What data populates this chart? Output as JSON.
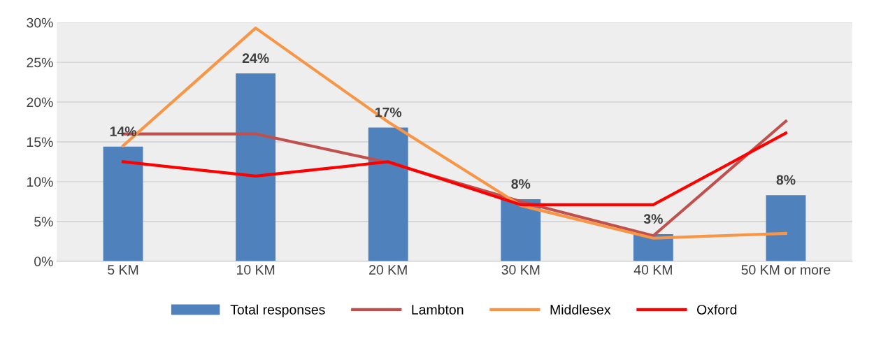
{
  "chart_data": {
    "type": "bar",
    "categories": [
      "5 KM",
      "10 KM",
      "20 KM",
      "30 KM",
      "40 KM",
      "50 KM or more"
    ],
    "series": [
      {
        "name": "Total responses",
        "color": "#4f81bd",
        "values": [
          14.4,
          23.6,
          16.8,
          7.8,
          3.4,
          8.3
        ],
        "value_labels": [
          "14%",
          "24%",
          "17%",
          "8%",
          "3%",
          "8%"
        ]
      },
      {
        "name": "Lambton",
        "type": "line",
        "color": "#c0504d",
        "values": [
          16.0,
          16.0,
          12.4,
          7.5,
          3.2,
          17.6
        ]
      },
      {
        "name": "Middlesex",
        "type": "line",
        "color": "#f79646",
        "values": [
          14.5,
          29.3,
          17.5,
          7.0,
          2.9,
          3.5
        ]
      },
      {
        "name": "Oxford",
        "type": "line",
        "color": "#ff0000",
        "values": [
          12.5,
          10.7,
          12.5,
          7.1,
          7.1,
          16.1
        ]
      }
    ],
    "ylim": [
      0,
      30
    ],
    "yticks": [
      {
        "value": 0,
        "label": "0%"
      },
      {
        "value": 5,
        "label": "5%"
      },
      {
        "value": 10,
        "label": "10%"
      },
      {
        "value": 15,
        "label": "15%"
      },
      {
        "value": 20,
        "label": "20%"
      },
      {
        "value": 25,
        "label": "25%"
      },
      {
        "value": 30,
        "label": "30%"
      }
    ],
    "grid": "y",
    "legend": "bottom",
    "marker": "none",
    "line_style": "solid"
  }
}
